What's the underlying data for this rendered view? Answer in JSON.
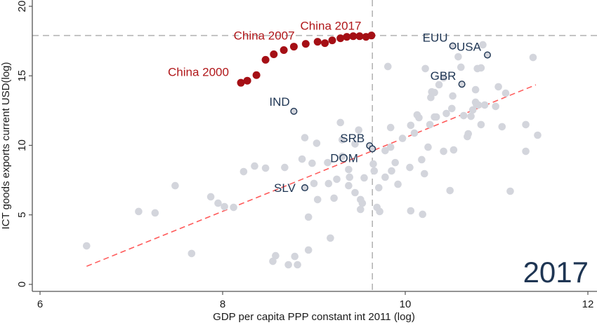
{
  "chart_data": {
    "type": "scatter",
    "title": "",
    "year_annotation": "2017",
    "xlabel": "GDP per capita PPP constant int 2011 (log)",
    "ylabel": "ICT goods exports current USD(log)",
    "xlim": [
      6,
      12
    ],
    "ylim": [
      0,
      20
    ],
    "xticks": [
      6,
      8,
      10,
      12
    ],
    "yticks": [
      0,
      5,
      10,
      15,
      20
    ],
    "grid": false,
    "legend": "none",
    "colors": {
      "other": "#d3d5dc",
      "china": "#a50f15",
      "highlight_fill": "#d3d5dc",
      "highlight_edge": "#1e3553",
      "fit_line": "#ff5a5a",
      "reference_line": "#b5b5b5",
      "text_dark": "#1e3553",
      "text_china": "#b0171a"
    },
    "reference_lines": {
      "vertical_x": 9.64,
      "horizontal_y": 17.9
    },
    "fit_line": {
      "x": [
        6.51,
        11.43
      ],
      "y": [
        1.3,
        14.35
      ]
    },
    "series": [
      {
        "name": "China 2000-2017",
        "points": [
          {
            "x": 8.2,
            "y": 14.5
          },
          {
            "x": 8.27,
            "y": 14.65
          },
          {
            "x": 8.37,
            "y": 15.05
          },
          {
            "x": 8.47,
            "y": 16.15
          },
          {
            "x": 8.56,
            "y": 16.55
          },
          {
            "x": 8.67,
            "y": 16.85
          },
          {
            "x": 8.78,
            "y": 17.1
          },
          {
            "x": 8.91,
            "y": 17.3
          },
          {
            "x": 9.04,
            "y": 17.45
          },
          {
            "x": 9.12,
            "y": 17.35
          },
          {
            "x": 9.2,
            "y": 17.55
          },
          {
            "x": 9.29,
            "y": 17.7
          },
          {
            "x": 9.36,
            "y": 17.8
          },
          {
            "x": 9.43,
            "y": 17.85
          },
          {
            "x": 9.5,
            "y": 17.85
          },
          {
            "x": 9.57,
            "y": 17.8
          },
          {
            "x": 9.63,
            "y": 17.9
          }
        ],
        "labels": [
          {
            "text": "China 2000",
            "x": 7.4,
            "y": 15.0
          },
          {
            "text": "China 2007",
            "x": 8.12,
            "y": 17.6
          },
          {
            "text": "China 2017",
            "x": 8.85,
            "y": 18.3
          }
        ]
      },
      {
        "name": "Highlighted countries",
        "points": [
          {
            "label": "EUU",
            "x": 10.52,
            "y": 17.15
          },
          {
            "label": "USA",
            "x": 10.9,
            "y": 16.5
          },
          {
            "label": "GBR",
            "x": 10.62,
            "y": 14.4
          },
          {
            "label": "IND",
            "x": 8.78,
            "y": 12.45
          },
          {
            "label": "SRB",
            "x": 9.61,
            "y": 9.97
          },
          {
            "label": "DOM",
            "x": 9.64,
            "y": 9.75
          },
          {
            "label": "SLV",
            "x": 8.9,
            "y": 6.95
          }
        ]
      },
      {
        "name": "Other countries",
        "points": [
          {
            "x": 6.51,
            "y": 2.77
          },
          {
            "x": 7.08,
            "y": 5.24
          },
          {
            "x": 7.26,
            "y": 5.14
          },
          {
            "x": 7.48,
            "y": 7.1
          },
          {
            "x": 7.66,
            "y": 2.22
          },
          {
            "x": 7.87,
            "y": 6.3
          },
          {
            "x": 7.95,
            "y": 5.84
          },
          {
            "x": 8.02,
            "y": 5.59
          },
          {
            "x": 8.12,
            "y": 5.54
          },
          {
            "x": 8.23,
            "y": 8.11
          },
          {
            "x": 8.35,
            "y": 8.51
          },
          {
            "x": 8.47,
            "y": 8.36
          },
          {
            "x": 8.55,
            "y": 1.66
          },
          {
            "x": 8.58,
            "y": 2.06
          },
          {
            "x": 8.68,
            "y": 8.41
          },
          {
            "x": 8.72,
            "y": 1.41
          },
          {
            "x": 8.79,
            "y": 2.01
          },
          {
            "x": 8.82,
            "y": 1.41
          },
          {
            "x": 8.94,
            "y": 2.47
          },
          {
            "x": 8.94,
            "y": 4.84
          },
          {
            "x": 9.0,
            "y": 7.26
          },
          {
            "x": 8.9,
            "y": 10.55
          },
          {
            "x": 9.03,
            "y": 10.15
          },
          {
            "x": 9.04,
            "y": 6.1
          },
          {
            "x": 8.98,
            "y": 8.71
          },
          {
            "x": 8.87,
            "y": 9.01
          },
          {
            "x": 9.15,
            "y": 8.76
          },
          {
            "x": 9.25,
            "y": 7.56
          },
          {
            "x": 9.16,
            "y": 7.25
          },
          {
            "x": 9.18,
            "y": 3.33
          },
          {
            "x": 9.22,
            "y": 6.2
          },
          {
            "x": 9.29,
            "y": 11.64
          },
          {
            "x": 9.31,
            "y": 9.21
          },
          {
            "x": 9.31,
            "y": 10.4
          },
          {
            "x": 9.38,
            "y": 7.1
          },
          {
            "x": 9.45,
            "y": 10.1
          },
          {
            "x": 9.49,
            "y": 11.1
          },
          {
            "x": 9.51,
            "y": 5.39
          },
          {
            "x": 9.53,
            "y": 5.84
          },
          {
            "x": 9.55,
            "y": 7.66
          },
          {
            "x": 9.38,
            "y": 8.26
          },
          {
            "x": 9.39,
            "y": 7.71
          },
          {
            "x": 9.45,
            "y": 6.6
          },
          {
            "x": 9.51,
            "y": 6.1
          },
          {
            "x": 9.65,
            "y": 8.66
          },
          {
            "x": 9.66,
            "y": 8.16
          },
          {
            "x": 9.71,
            "y": 6.95
          },
          {
            "x": 9.69,
            "y": 5.54
          },
          {
            "x": 9.72,
            "y": 5.24
          },
          {
            "x": 9.84,
            "y": 9.87
          },
          {
            "x": 9.81,
            "y": 15.67
          },
          {
            "x": 9.78,
            "y": 7.71
          },
          {
            "x": 9.78,
            "y": 9.62
          },
          {
            "x": 9.84,
            "y": 11.28
          },
          {
            "x": 9.97,
            "y": 10.5
          },
          {
            "x": 9.85,
            "y": 8.16
          },
          {
            "x": 9.92,
            "y": 7.2
          },
          {
            "x": 9.89,
            "y": 8.76
          },
          {
            "x": 10.05,
            "y": 8.41
          },
          {
            "x": 10.06,
            "y": 5.29
          },
          {
            "x": 10.06,
            "y": 11.44
          },
          {
            "x": 10.15,
            "y": 11.99
          },
          {
            "x": 10.18,
            "y": 8.97
          },
          {
            "x": 10.19,
            "y": 5.04
          },
          {
            "x": 10.21,
            "y": 7.96
          },
          {
            "x": 10.1,
            "y": 10.88
          },
          {
            "x": 10.13,
            "y": 12.19
          },
          {
            "x": 10.22,
            "y": 15.52
          },
          {
            "x": 10.25,
            "y": 9.87
          },
          {
            "x": 10.28,
            "y": 13.44
          },
          {
            "x": 10.29,
            "y": 13.85
          },
          {
            "x": 10.27,
            "y": 11.49
          },
          {
            "x": 10.32,
            "y": 12.04
          },
          {
            "x": 10.32,
            "y": 13.8
          },
          {
            "x": 10.34,
            "y": 12.04
          },
          {
            "x": 10.37,
            "y": 14.36
          },
          {
            "x": 10.42,
            "y": 14.86
          },
          {
            "x": 10.42,
            "y": 9.57
          },
          {
            "x": 10.45,
            "y": 12.29
          },
          {
            "x": 10.49,
            "y": 6.75
          },
          {
            "x": 10.51,
            "y": 12.65
          },
          {
            "x": 10.52,
            "y": 13.55
          },
          {
            "x": 10.53,
            "y": 9.67
          },
          {
            "x": 10.58,
            "y": 16.37
          },
          {
            "x": 10.61,
            "y": 15.62
          },
          {
            "x": 10.64,
            "y": 12.14
          },
          {
            "x": 10.68,
            "y": 10.63
          },
          {
            "x": 10.69,
            "y": 10.83
          },
          {
            "x": 10.72,
            "y": 12.09
          },
          {
            "x": 10.74,
            "y": 12.55
          },
          {
            "x": 10.77,
            "y": 13.1
          },
          {
            "x": 10.77,
            "y": 14.0
          },
          {
            "x": 10.78,
            "y": 12.95
          },
          {
            "x": 10.79,
            "y": 15.52
          },
          {
            "x": 10.83,
            "y": 15.57
          },
          {
            "x": 10.8,
            "y": 12.9
          },
          {
            "x": 10.83,
            "y": 11.49
          },
          {
            "x": 10.85,
            "y": 17.23
          },
          {
            "x": 10.87,
            "y": 12.9
          },
          {
            "x": 11.02,
            "y": 14.21
          },
          {
            "x": 11.06,
            "y": 11.34
          },
          {
            "x": 10.99,
            "y": 12.8
          },
          {
            "x": 11.1,
            "y": 13.75
          },
          {
            "x": 11.15,
            "y": 6.7
          },
          {
            "x": 11.32,
            "y": 11.49
          },
          {
            "x": 11.32,
            "y": 9.57
          },
          {
            "x": 11.4,
            "y": 16.32
          },
          {
            "x": 11.45,
            "y": 10.73
          }
        ]
      }
    ]
  }
}
